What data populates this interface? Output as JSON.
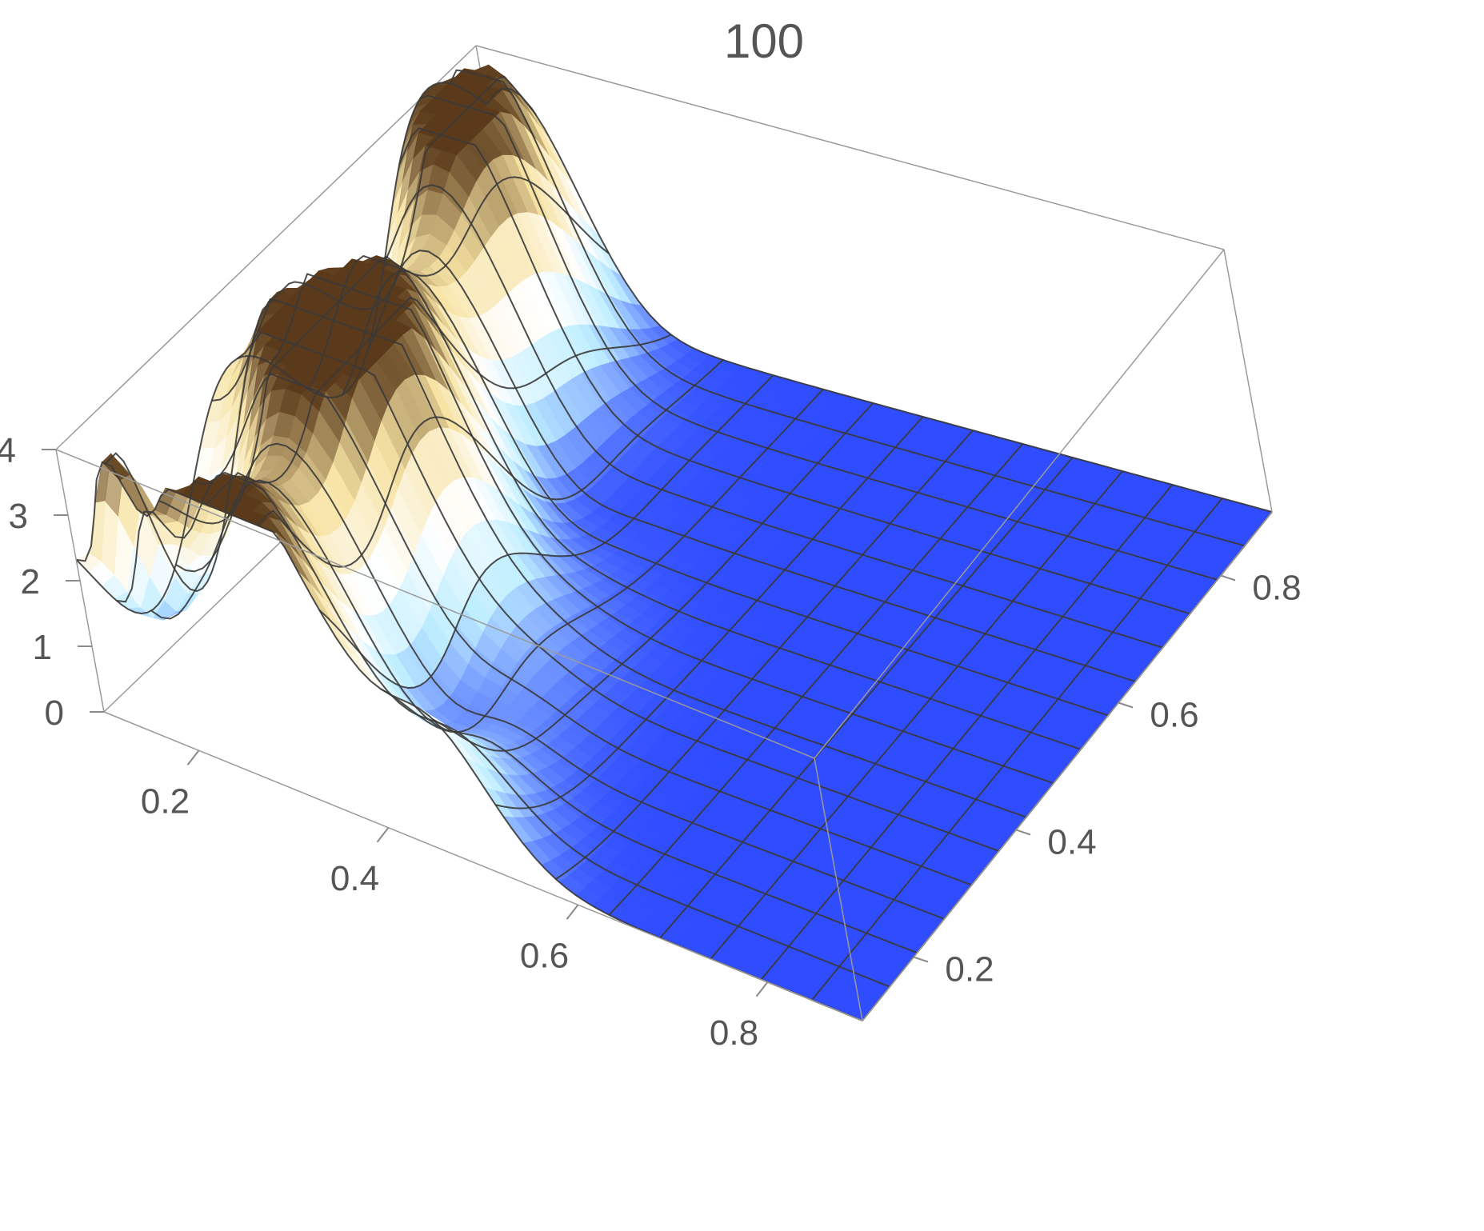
{
  "chart_data": {
    "type": "surface3d",
    "title": "100",
    "x_ticks": [
      "0.2",
      "0.4",
      "0.6",
      "0.8"
    ],
    "y_ticks": [
      "0.2",
      "0.4",
      "0.6",
      "0.8"
    ],
    "z_ticks": [
      "0",
      "1",
      "2",
      "3",
      "4"
    ],
    "xlim": [
      0.1,
      0.9
    ],
    "ylim": [
      0.1,
      0.9
    ],
    "zlim": [
      0,
      4
    ],
    "mesh_lines": 15,
    "colormap": [
      "#2f4cff",
      "#bfeeff",
      "#ffffff",
      "#f7e3a4",
      "#5a3a1a"
    ],
    "description_free": true
  }
}
